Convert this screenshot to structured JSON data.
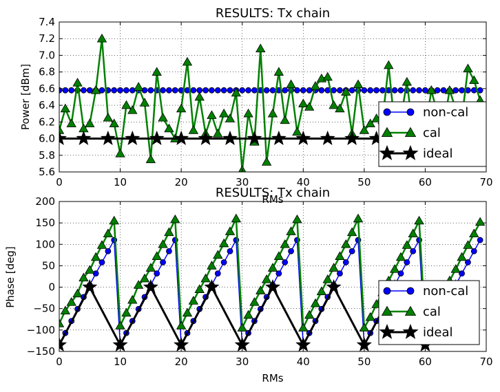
{
  "chart_data": [
    {
      "type": "line",
      "title": "RESULTS: Tx chain",
      "xlabel": "RMs",
      "ylabel": "Power [dBm]",
      "xlim": [
        0,
        70
      ],
      "ylim": [
        5.6,
        7.4
      ],
      "xticks": [
        0,
        10,
        20,
        30,
        40,
        50,
        60,
        70
      ],
      "yticks": [
        5.6,
        5.8,
        6.0,
        6.2,
        6.4,
        6.6,
        6.8,
        7.0,
        7.2,
        7.4
      ],
      "xtick_labels": [
        "0",
        "10",
        "20",
        "30",
        "40",
        "50",
        "60",
        "70"
      ],
      "ytick_labels": [
        "5.6",
        "5.8",
        "6.0",
        "6.2",
        "6.4",
        "6.6",
        "6.8",
        "7.0",
        "7.2",
        "7.4"
      ],
      "grid": true,
      "legend_position": "lower-right",
      "series": [
        {
          "name": "non-cal",
          "color": "#0000ff",
          "marker": "circle",
          "values": [
            6.58,
            6.58,
            6.58,
            6.58,
            6.58,
            6.58,
            6.58,
            6.58,
            6.58,
            6.58,
            6.58,
            6.58,
            6.58,
            6.58,
            6.58,
            6.58,
            6.58,
            6.58,
            6.58,
            6.58,
            6.58,
            6.58,
            6.58,
            6.58,
            6.58,
            6.58,
            6.58,
            6.58,
            6.58,
            6.58,
            6.58,
            6.58,
            6.58,
            6.58,
            6.58,
            6.58,
            6.58,
            6.58,
            6.58,
            6.58,
            6.58,
            6.58,
            6.58,
            6.58,
            6.58,
            6.58,
            6.58,
            6.58,
            6.58,
            6.58,
            6.58,
            6.58,
            6.58,
            6.58,
            6.58,
            6.58,
            6.58,
            6.58,
            6.58,
            6.58,
            6.58,
            6.58,
            6.58,
            6.58,
            6.58,
            6.58,
            6.58,
            6.58,
            6.58,
            6.58
          ]
        },
        {
          "name": "cal",
          "color": "#008000",
          "marker": "triangle",
          "values": [
            6.1,
            6.36,
            6.18,
            6.67,
            6.12,
            6.18,
            6.58,
            7.2,
            6.25,
            6.18,
            5.82,
            6.4,
            6.34,
            6.62,
            6.43,
            5.75,
            6.8,
            6.25,
            6.12,
            6.0,
            6.36,
            6.92,
            6.1,
            6.5,
            6.06,
            6.28,
            6.06,
            6.3,
            6.24,
            6.55,
            5.62,
            6.3,
            5.96,
            7.08,
            5.72,
            6.3,
            6.8,
            6.22,
            6.65,
            6.08,
            6.42,
            6.38,
            6.63,
            6.72,
            6.74,
            6.4,
            6.36,
            6.56,
            6.06,
            6.65,
            6.1,
            6.18,
            6.24,
            6.22,
            6.88,
            6.14,
            6.24,
            6.68,
            6.08,
            6.2,
            6.1,
            6.58,
            6.3,
            6.16,
            6.58,
            6.36,
            6.24,
            6.84,
            6.7,
            6.46
          ],
          "values_note": ""
        },
        {
          "name": "ideal",
          "color": "#000000",
          "marker": "star",
          "x": [
            0,
            4,
            8,
            12,
            16,
            20,
            24,
            28,
            32,
            36,
            40,
            44,
            48,
            52,
            56,
            60,
            64,
            68
          ],
          "values": [
            6.0,
            6.0,
            6.0,
            6.0,
            6.0,
            6.0,
            6.0,
            6.0,
            6.0,
            6.0,
            6.0,
            6.0,
            6.0,
            6.0,
            6.0,
            6.0,
            6.0,
            6.0
          ]
        }
      ]
    },
    {
      "type": "line",
      "title": "RESULTS: Tx chain",
      "xlabel": "RMs",
      "ylabel": "Phase [deg]",
      "xlim": [
        0,
        70
      ],
      "ylim": [
        -150,
        200
      ],
      "xticks": [
        0,
        10,
        20,
        30,
        40,
        50,
        60,
        70
      ],
      "yticks": [
        -150,
        -100,
        -50,
        0,
        50,
        100,
        150,
        200
      ],
      "xtick_labels": [
        "0",
        "10",
        "20",
        "30",
        "40",
        "50",
        "60",
        "70"
      ],
      "ytick_labels": [
        "−150",
        "−100",
        "−50",
        "0",
        "50",
        "100",
        "150",
        "200"
      ],
      "grid": true,
      "legend_position": "lower-right",
      "series": [
        {
          "name": "non-cal",
          "color": "#0000ff",
          "marker": "circle",
          "values": [
            -135,
            -107,
            -79,
            -51,
            -23,
            5,
            32,
            58,
            84,
            110,
            -135,
            -107,
            -79,
            -51,
            -23,
            5,
            32,
            58,
            84,
            110,
            -135,
            -107,
            -79,
            -51,
            -23,
            5,
            32,
            58,
            84,
            110,
            -135,
            -107,
            -79,
            -51,
            -23,
            5,
            32,
            58,
            84,
            110,
            -135,
            -107,
            -79,
            -51,
            -23,
            5,
            32,
            58,
            84,
            110,
            -135,
            -107,
            -79,
            -51,
            -23,
            5,
            32,
            58,
            84,
            110,
            -135,
            -107,
            -79,
            -51,
            -23,
            5,
            32,
            58,
            84,
            110
          ]
        },
        {
          "name": "cal",
          "color": "#008000",
          "marker": "triangle",
          "values": [
            -85,
            -55,
            -35,
            -15,
            22,
            40,
            70,
            98,
            125,
            155,
            -90,
            -60,
            -30,
            5,
            20,
            45,
            72,
            100,
            128,
            158,
            -90,
            -60,
            -32,
            -5,
            20,
            50,
            75,
            102,
            130,
            160,
            -95,
            -65,
            -35,
            -8,
            18,
            45,
            72,
            100,
            130,
            158,
            -95,
            -65,
            -38,
            -10,
            18,
            45,
            72,
            100,
            128,
            160,
            -95,
            -70,
            -40,
            -12,
            15,
            42,
            70,
            98,
            125,
            155,
            -95,
            -68,
            -40,
            -12,
            15,
            42,
            70,
            98,
            125,
            152
          ]
        },
        {
          "name": "ideal",
          "color": "#000000",
          "marker": "star",
          "x": [
            0,
            5,
            10,
            15,
            20,
            25,
            30,
            35,
            40,
            45,
            50,
            55,
            60,
            65
          ],
          "values": [
            -135,
            0,
            -135,
            0,
            -135,
            0,
            -135,
            0,
            -135,
            0,
            -135,
            0,
            -135,
            0
          ]
        }
      ]
    }
  ]
}
